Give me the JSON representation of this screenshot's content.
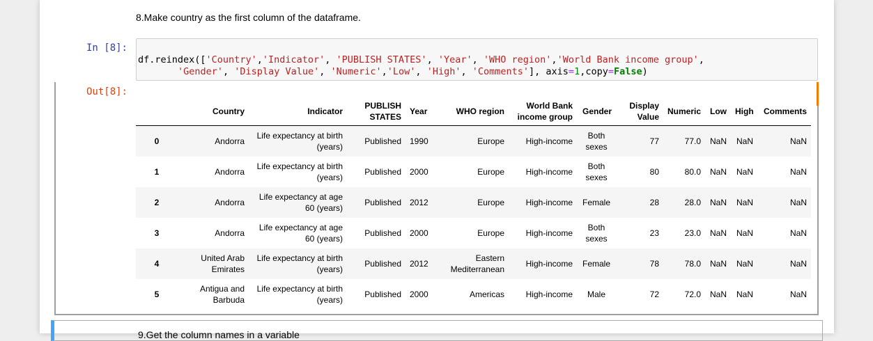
{
  "markdown": "8.Make country as the first column of the dataframe.",
  "code_cell": {
    "prompt": "In [8]:",
    "lines": [
      [
        {
          "text": "df.reindex([",
          "color": "#000000"
        },
        {
          "text": "'Country'",
          "color": "#ba2121"
        },
        {
          "text": ",",
          "color": "#000000"
        },
        {
          "text": "'Indicator'",
          "color": "#ba2121"
        },
        {
          "text": ", ",
          "color": "#000000"
        },
        {
          "text": "'PUBLISH STATES'",
          "color": "#ba2121"
        },
        {
          "text": ", ",
          "color": "#000000"
        },
        {
          "text": "'Year'",
          "color": "#ba2121"
        },
        {
          "text": ", ",
          "color": "#000000"
        },
        {
          "text": "'WHO region'",
          "color": "#ba2121"
        },
        {
          "text": ",",
          "color": "#000000"
        },
        {
          "text": "'World Bank income group'",
          "color": "#ba2121"
        },
        {
          "text": ",",
          "color": "#000000"
        }
      ],
      [
        {
          "text": "'Gender'",
          "color": "#ba2121"
        },
        {
          "text": ", ",
          "color": "#000000"
        },
        {
          "text": "'Display Value'",
          "color": "#ba2121"
        },
        {
          "text": ", ",
          "color": "#000000"
        },
        {
          "text": "'Numeric'",
          "color": "#ba2121"
        },
        {
          "text": ",",
          "color": "#000000"
        },
        {
          "text": "'Low'",
          "color": "#ba2121"
        },
        {
          "text": ", ",
          "color": "#000000"
        },
        {
          "text": "'High'",
          "color": "#ba2121"
        },
        {
          "text": ", ",
          "color": "#000000"
        },
        {
          "text": "'Comments'",
          "color": "#ba2121"
        },
        {
          "text": "], axis",
          "color": "#000000"
        },
        {
          "text": "=",
          "color": "#aa22ff"
        },
        {
          "text": "1",
          "color": "#008800"
        },
        {
          "text": ",copy",
          "color": "#000000"
        },
        {
          "text": "=",
          "color": "#aa22ff"
        },
        {
          "text": "False",
          "color": "#008000",
          "weight": "bold"
        },
        {
          "text": ")",
          "color": "#000000"
        }
      ]
    ]
  },
  "output": {
    "prompt": "Out[8]:",
    "table": {
      "columns": [
        "Country",
        "Indicator",
        "PUBLISH STATES",
        "Year",
        "WHO region",
        "World Bank income group",
        "Gender",
        "Display Value",
        "Numeric",
        "Low",
        "High",
        "Comments"
      ],
      "rows": [
        [
          0,
          "Andorra",
          "Life expectancy at birth (years)",
          "Published",
          1990,
          "Europe",
          "High-income",
          "Both sexes",
          77,
          "77.0",
          "NaN",
          "NaN",
          "NaN"
        ],
        [
          1,
          "Andorra",
          "Life expectancy at birth (years)",
          "Published",
          2000,
          "Europe",
          "High-income",
          "Both sexes",
          80,
          "80.0",
          "NaN",
          "NaN",
          "NaN"
        ],
        [
          2,
          "Andorra",
          "Life expectancy at age 60 (years)",
          "Published",
          2012,
          "Europe",
          "High-income",
          "Female",
          28,
          "28.0",
          "NaN",
          "NaN",
          "NaN"
        ],
        [
          3,
          "Andorra",
          "Life expectancy at age 60 (years)",
          "Published",
          2000,
          "Europe",
          "High-income",
          "Both sexes",
          23,
          "23.0",
          "NaN",
          "NaN",
          "NaN"
        ],
        [
          4,
          "United Arab Emirates",
          "Life expectancy at birth (years)",
          "Published",
          2012,
          "Eastern Mediterranean",
          "High-income",
          "Female",
          78,
          "78.0",
          "NaN",
          "NaN",
          "NaN"
        ],
        [
          5,
          "Antigua and Barbuda",
          "Life expectancy at birth (years)",
          "Published",
          2000,
          "Americas",
          "High-income",
          "Male",
          72,
          "72.0",
          "NaN",
          "NaN",
          "NaN"
        ]
      ]
    }
  },
  "next_markdown": "9.Get the column names in a variable"
}
